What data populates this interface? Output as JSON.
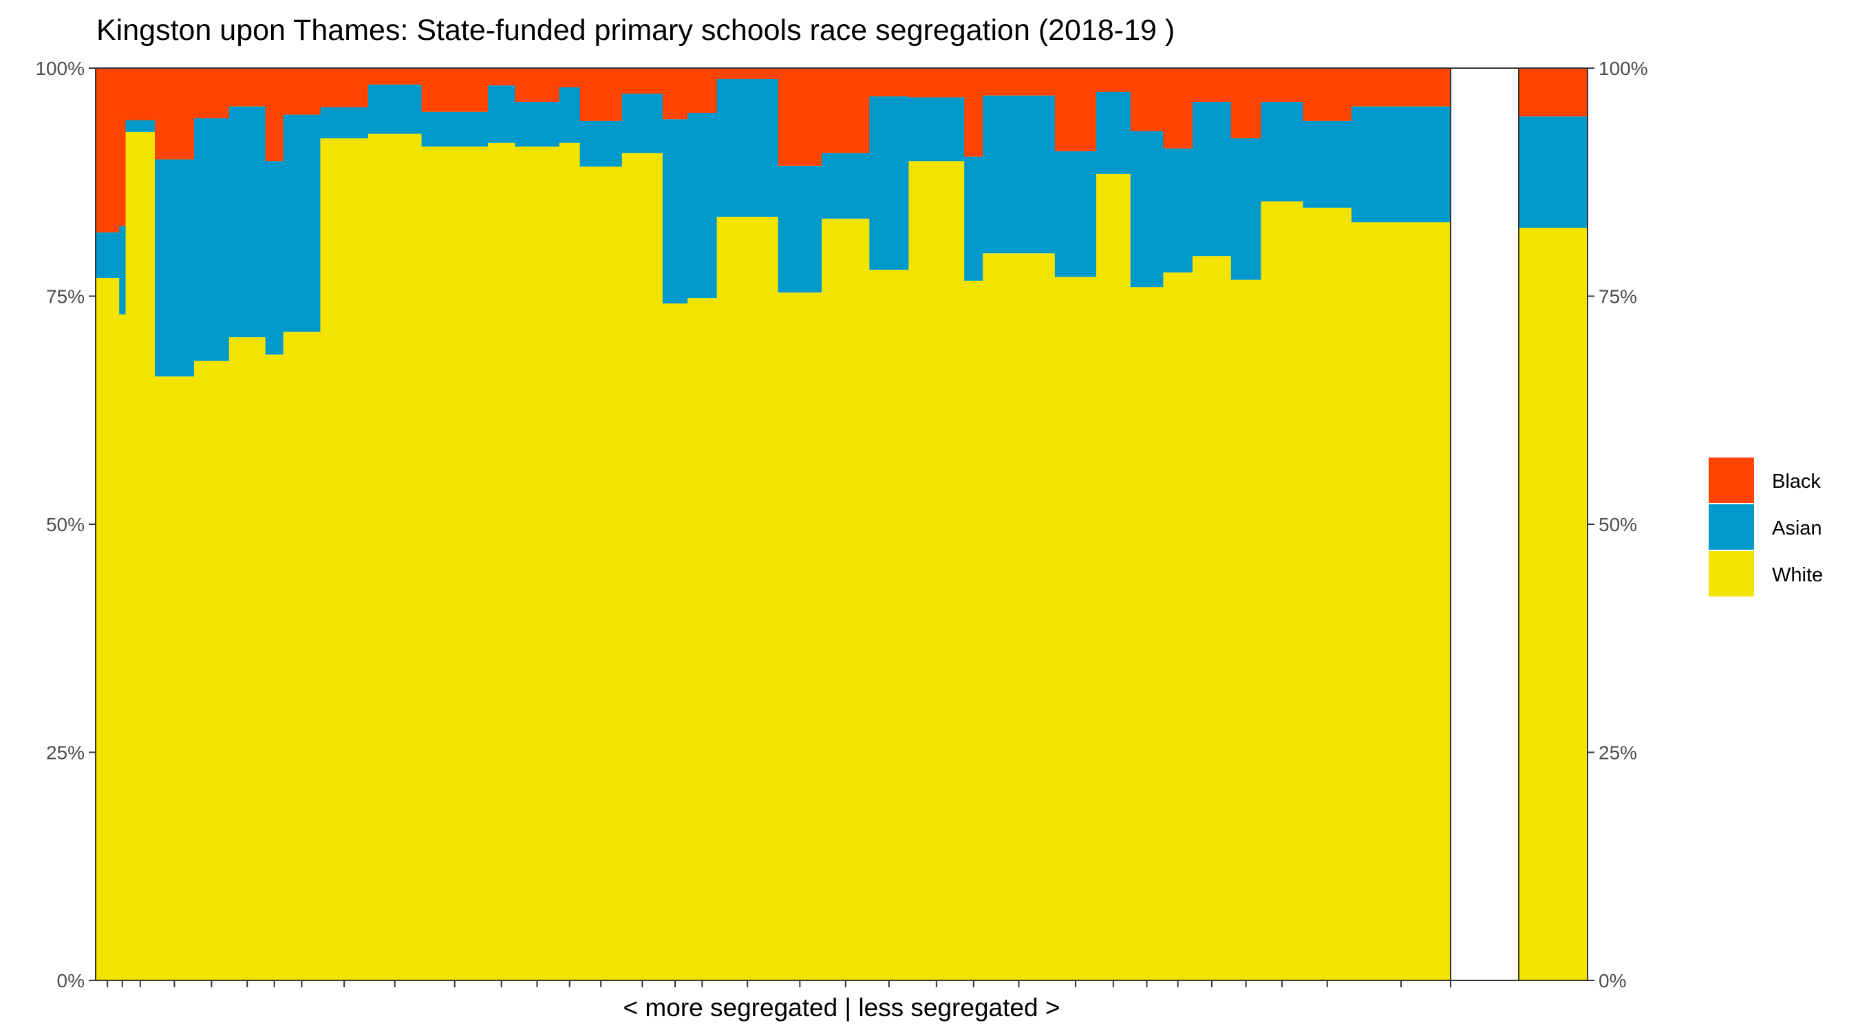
{
  "chart_data": {
    "type": "bar",
    "subtype": "stacked-100-variable-width",
    "title": "Kingston upon Thames: State-funded primary schools race segregation (2018-19 )",
    "xlabel": "< more segregated | less segregated >",
    "ylabel": "",
    "ylim": [
      0,
      1
    ],
    "y_ticks": [
      "0%",
      "25%",
      "50%",
      "75%",
      "100%"
    ],
    "y_axis_sides": "left-and-right",
    "grid": false,
    "legend_position": "right",
    "stack_order_bottom_to_top": [
      "White",
      "Asian",
      "Black"
    ],
    "series_colors": {
      "White": "#f2e300",
      "Asian": "#0099cc",
      "Black": "#ff4400"
    },
    "legend": [
      {
        "name": "Black",
        "color": "#ff4400"
      },
      {
        "name": "Asian",
        "color": "#0099cc"
      },
      {
        "name": "White",
        "color": "#f2e300"
      }
    ],
    "schools": [
      {
        "width": 33,
        "white": 0.77,
        "asian": 0.05
      },
      {
        "width": 9,
        "white": 0.73,
        "asian": 0.097
      },
      {
        "width": 41,
        "white": 0.93,
        "asian": 0.013
      },
      {
        "width": 55,
        "white": 0.662,
        "asian": 0.238
      },
      {
        "width": 49,
        "white": 0.679,
        "asian": 0.266
      },
      {
        "width": 51,
        "white": 0.705,
        "asian": 0.253
      },
      {
        "width": 25,
        "white": 0.686,
        "asian": 0.212
      },
      {
        "width": 52,
        "white": 0.711,
        "asian": 0.238
      },
      {
        "width": 67,
        "white": 0.923,
        "asian": 0.034
      },
      {
        "width": 75,
        "white": 0.928,
        "asian": 0.054
      },
      {
        "width": 93,
        "white": 0.914,
        "asian": 0.038
      },
      {
        "width": 38,
        "white": 0.918,
        "asian": 0.063
      },
      {
        "width": 62,
        "white": 0.914,
        "asian": 0.049
      },
      {
        "width": 29,
        "white": 0.918,
        "asian": 0.061
      },
      {
        "width": 59,
        "white": 0.892,
        "asian": 0.05
      },
      {
        "width": 57,
        "white": 0.907,
        "asian": 0.065
      },
      {
        "width": 35,
        "white": 0.742,
        "asian": 0.202
      },
      {
        "width": 41,
        "white": 0.748,
        "asian": 0.203
      },
      {
        "width": 86,
        "white": 0.837,
        "asian": 0.151
      },
      {
        "width": 61,
        "white": 0.754,
        "asian": 0.139
      },
      {
        "width": 67,
        "white": 0.835,
        "asian": 0.072
      },
      {
        "width": 55,
        "white": 0.779,
        "asian": 0.19
      },
      {
        "width": 78,
        "white": 0.898,
        "asian": 0.07
      },
      {
        "width": 26,
        "white": 0.767,
        "asian": 0.136
      },
      {
        "width": 101,
        "white": 0.797,
        "asian": 0.173
      },
      {
        "width": 58,
        "white": 0.771,
        "asian": 0.138
      },
      {
        "width": 48,
        "white": 0.884,
        "asian": 0.09
      },
      {
        "width": 46,
        "white": 0.76,
        "asian": 0.171
      },
      {
        "width": 41,
        "white": 0.776,
        "asian": 0.136
      },
      {
        "width": 54,
        "white": 0.794,
        "asian": 0.169
      },
      {
        "width": 42,
        "white": 0.768,
        "asian": 0.155
      },
      {
        "width": 59,
        "white": 0.854,
        "asian": 0.109
      },
      {
        "width": 68,
        "white": 0.847,
        "asian": 0.095
      },
      {
        "width": 139,
        "white": 0.831,
        "asian": 0.127
      }
    ],
    "total_bar": {
      "white": 0.825,
      "asian": 0.122
    }
  }
}
